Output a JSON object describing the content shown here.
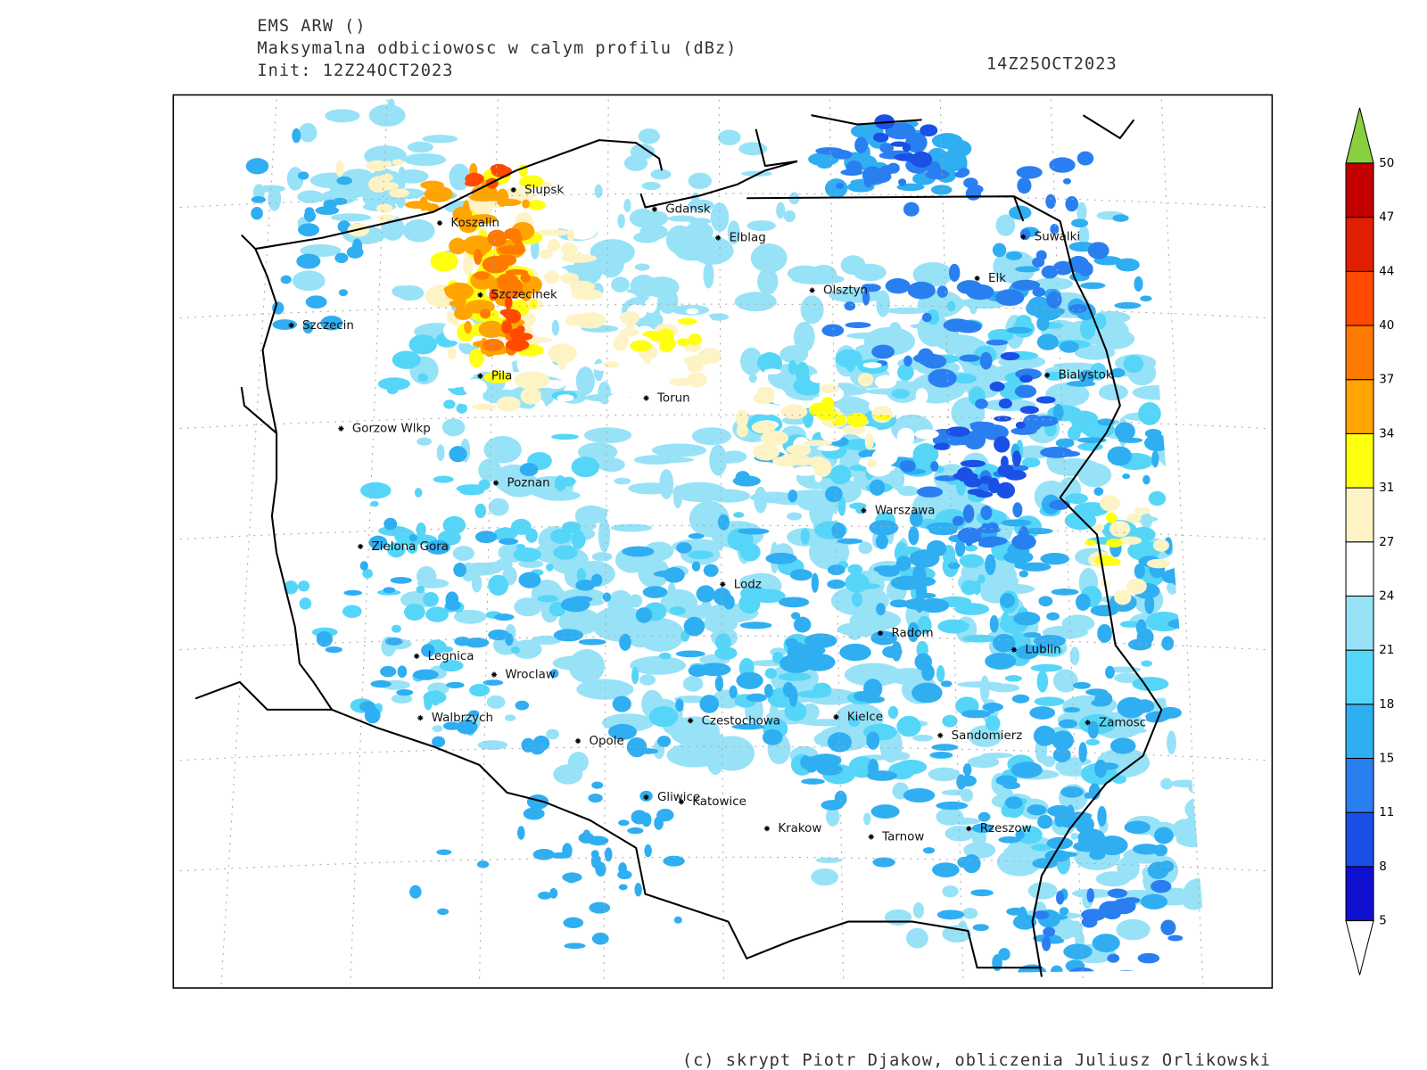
{
  "header": {
    "model": "EMS ARW ()",
    "field": "Maksymalna odbiciowosc w calym profilu (dBz)",
    "init": "Init: 12Z24OCT2023",
    "valid": "14Z25OCT2023"
  },
  "cities": [
    "Slupsk",
    "Koszalin",
    "Gdansk",
    "Elblag",
    "Suwalki",
    "Elk",
    "Olsztyn",
    "Szczecinek",
    "Szczecin",
    "Bialystok",
    "Pila",
    "Torun",
    "Gorzow Wlkp",
    "Poznan",
    "Warszawa",
    "Zielona Gora",
    "Lodz",
    "Radom",
    "Lublin",
    "Legnica",
    "Wroclaw",
    "Walbrzych",
    "Czestochowa",
    "Kielce",
    "Opole",
    "Sandomierz",
    "Zamosc",
    "Gliwice",
    "Katowice",
    "Krakow",
    "Tarnow",
    "Rzeszow"
  ],
  "colorbar": {
    "levels": [
      5,
      8,
      11,
      15,
      18,
      21,
      24,
      27,
      31,
      34,
      37,
      40,
      44,
      47,
      50
    ],
    "colors": [
      "#1010d0",
      "#1a50e6",
      "#2a7ff0",
      "#30aef2",
      "#55d6f8",
      "#98e2f8",
      "#ffffff",
      "#fdf3c4",
      "#ffff10",
      "#ffa400",
      "#ff7a00",
      "#ff4a00",
      "#e02000",
      "#c40000"
    ],
    "over_color": "#88d040",
    "under_color": "#ffffff"
  },
  "footer": "(c) skrypt Piotr Djakow, obliczenia Juliusz Orlikowski"
}
